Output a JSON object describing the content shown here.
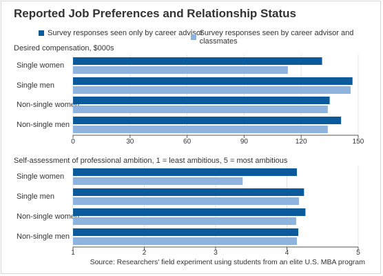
{
  "title": "Reported Job Preferences and Relationship Status",
  "legend": [
    {
      "label": "Survey responses seen only by career advisor",
      "color": "#0b5a9c"
    },
    {
      "label": "Survey responses seen by career advisor and classmates",
      "color": "#8fb3df"
    }
  ],
  "source": "Source: Researchers' field experiment using students from an elite U.S. MBA program",
  "chart_data": [
    {
      "type": "bar",
      "orientation": "horizontal",
      "title": "Desired compensation, $000s",
      "categories": [
        "Single women",
        "Single men",
        "Non-single women",
        "Non-single men"
      ],
      "series": [
        {
          "name": "Survey responses seen only by career advisor",
          "values": [
            131,
            147,
            135,
            141
          ]
        },
        {
          "name": "Survey responses seen by career advisor and classmates",
          "values": [
            113,
            146,
            134,
            134
          ]
        }
      ],
      "xlim": [
        0,
        150
      ],
      "ticks": [
        "0",
        "30",
        "60",
        "90",
        "120",
        "150"
      ],
      "grid": true
    },
    {
      "type": "bar",
      "orientation": "horizontal",
      "title": "Self-assessment of professional ambition, 1 = least ambitious, 5 = most ambitious",
      "categories": [
        "Single women",
        "Single men",
        "Non-single women",
        "Non-single men"
      ],
      "series": [
        {
          "name": "Survey responses seen only by career advisor",
          "values": [
            4.14,
            4.24,
            4.26,
            4.16
          ]
        },
        {
          "name": "Survey responses seen by career advisor and classmates",
          "values": [
            3.38,
            4.17,
            4.13,
            4.14
          ]
        }
      ],
      "xlim": [
        1,
        5
      ],
      "ticks": [
        "1",
        "2",
        "3",
        "4",
        "5"
      ],
      "grid": true
    }
  ]
}
